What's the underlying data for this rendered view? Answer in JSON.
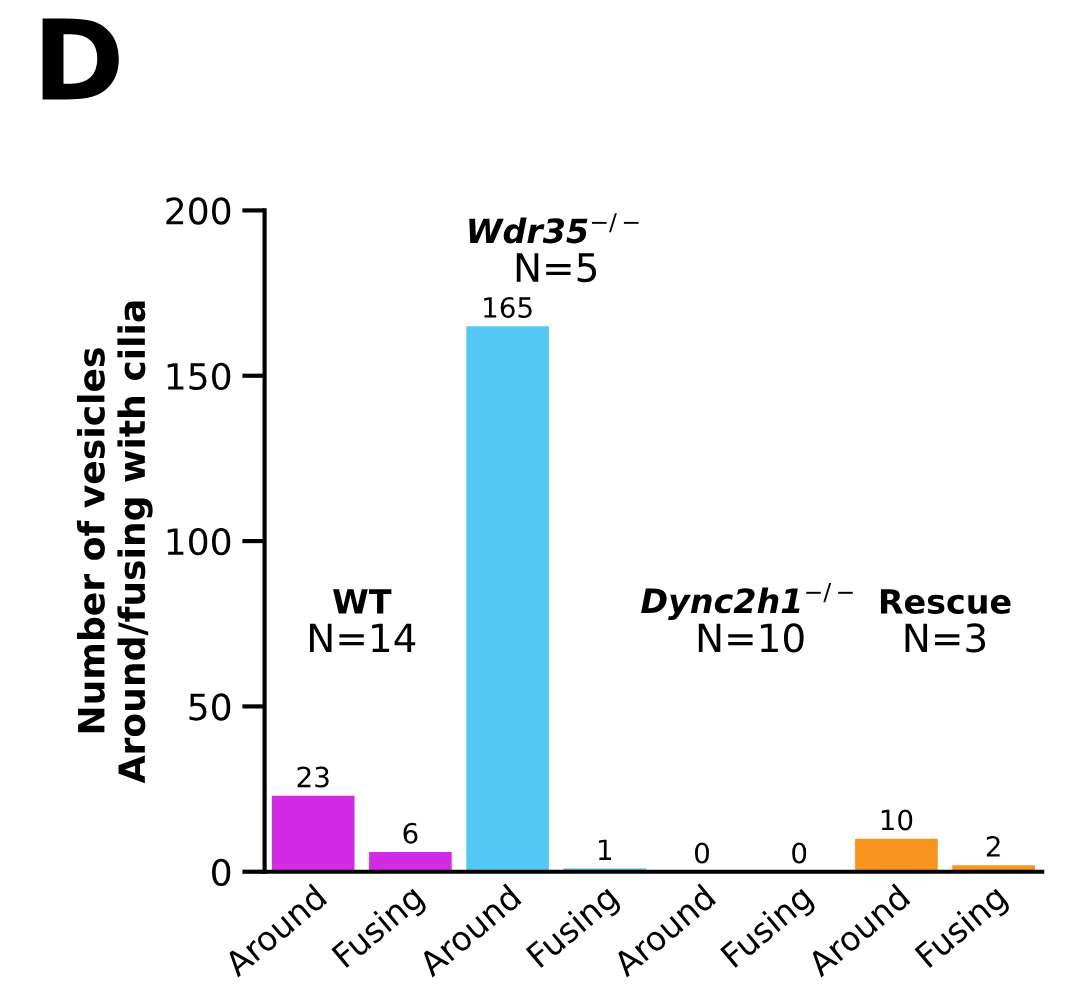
{
  "chart_data": {
    "type": "bar",
    "title": "D",
    "ylabel": "Number of vesicles\nAround/fusing with cilia",
    "categories": [
      "Around",
      "Fusing",
      "Around",
      "Fusing",
      "Around",
      "Fusing",
      "Around",
      "Fusing"
    ],
    "values": [
      23,
      6,
      165,
      1,
      0,
      0,
      10,
      2
    ],
    "colors": [
      "#d42ae6",
      "#d42ae6",
      "#56c8f5",
      "#56c8f5",
      "#56c8f5",
      "#56c8f5",
      "#f7941d",
      "#f7941d"
    ],
    "annotations": [
      "WT\nN=14",
      "Wdr35$^{−/−}$\nN=5",
      "Dync2h1$^{−/−}$\nN=10",
      "Rescue\nN=3"
    ],
    "ylim": [
      0,
      200
    ],
    "yticks": [
      0,
      50,
      100,
      150,
      200
    ],
    "data_labels": true,
    "grid": false,
    "legend": false
  }
}
